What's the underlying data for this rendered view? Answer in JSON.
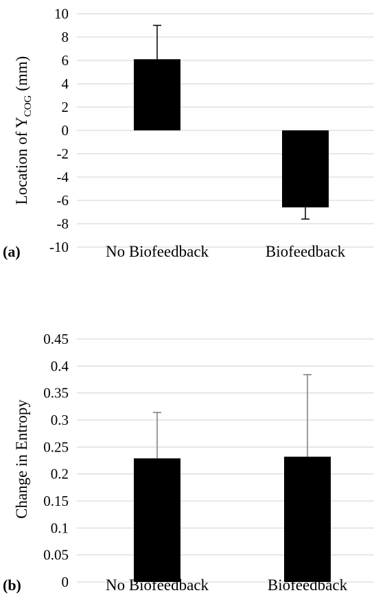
{
  "chart_data": [
    {
      "type": "bar",
      "panel_label": "(a)",
      "ylabel_main": "Location of Y",
      "ylabel_sub": "COG",
      "ylabel_unit": " (mm)",
      "ylim": [
        -10,
        10
      ],
      "yticks": [
        10,
        8,
        6,
        4,
        2,
        0,
        -2,
        -4,
        -6,
        -8,
        -10
      ],
      "categories": [
        "No Biofeedback",
        "Biofeedback"
      ],
      "values": [
        6.1,
        -6.6
      ],
      "error_plus": [
        2.9,
        0
      ],
      "error_minus": [
        0,
        1.0
      ],
      "grid": true,
      "legend": "none"
    },
    {
      "type": "bar",
      "panel_label": "(b)",
      "ylabel": "Change in Entropy",
      "ylim": [
        0,
        0.45
      ],
      "yticks": [
        "0.45",
        "0.4",
        "0.35",
        "0.3",
        "0.25",
        "0.2",
        "0.15",
        "0.1",
        "0.05",
        "0"
      ],
      "categories": [
        "No Biofeedback",
        "Biofeedback"
      ],
      "values": [
        0.229,
        0.232
      ],
      "error_plus": [
        0.085,
        0.152
      ],
      "error_minus": [
        0,
        0
      ],
      "grid": true,
      "legend": "none"
    }
  ]
}
